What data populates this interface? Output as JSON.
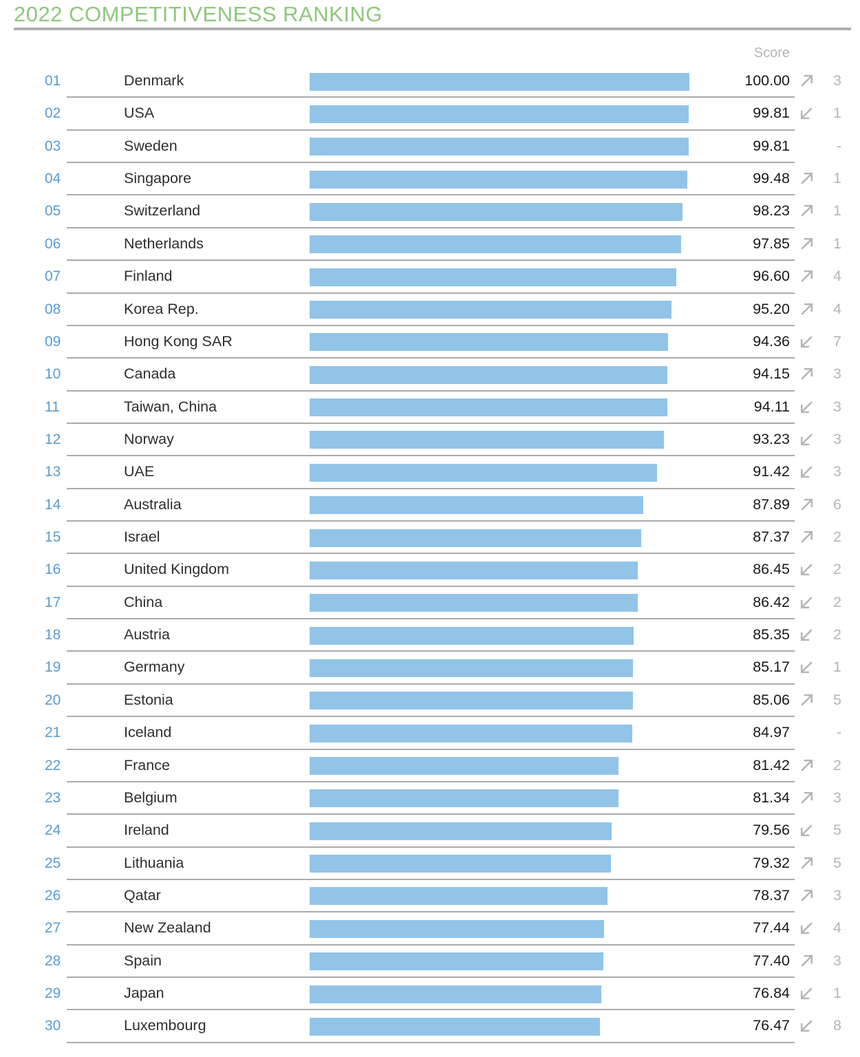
{
  "title": "2022 COMPETITIVENESS RANKING",
  "score_header": "Score",
  "colors": {
    "title_green": "#8DC87B",
    "rank_blue": "#5B9BCE",
    "bar_blue": "#92C4E8",
    "separator_gray": "#ABABAB",
    "muted_gray": "#B5B5B5",
    "score_text": "#1A1A1A",
    "country_text": "#2E2E2E"
  },
  "chart_data": {
    "type": "bar",
    "orientation": "horizontal",
    "title": "2022 COMPETITIVENESS RANKING",
    "value_label": "Score",
    "xlim": [
      0,
      100
    ],
    "grid": false,
    "legend": false,
    "rows": [
      {
        "rank": "01",
        "country": "Denmark",
        "score": 100.0,
        "score_label": "100.00",
        "trend": "up",
        "change": "3"
      },
      {
        "rank": "02",
        "country": "USA",
        "score": 99.81,
        "score_label": "99.81",
        "trend": "down",
        "change": "1"
      },
      {
        "rank": "03",
        "country": "Sweden",
        "score": 99.81,
        "score_label": "99.81",
        "trend": "none",
        "change": "-"
      },
      {
        "rank": "04",
        "country": "Singapore",
        "score": 99.48,
        "score_label": "99.48",
        "trend": "up",
        "change": "1"
      },
      {
        "rank": "05",
        "country": "Switzerland",
        "score": 98.23,
        "score_label": "98.23",
        "trend": "up",
        "change": "1"
      },
      {
        "rank": "06",
        "country": "Netherlands",
        "score": 97.85,
        "score_label": "97.85",
        "trend": "up",
        "change": "1"
      },
      {
        "rank": "07",
        "country": "Finland",
        "score": 96.6,
        "score_label": "96.60",
        "trend": "up",
        "change": "4"
      },
      {
        "rank": "08",
        "country": "Korea Rep.",
        "score": 95.2,
        "score_label": "95.20",
        "trend": "up",
        "change": "4"
      },
      {
        "rank": "09",
        "country": "Hong Kong SAR",
        "score": 94.36,
        "score_label": "94.36",
        "trend": "down",
        "change": "7"
      },
      {
        "rank": "10",
        "country": "Canada",
        "score": 94.15,
        "score_label": "94.15",
        "trend": "up",
        "change": "3"
      },
      {
        "rank": "11",
        "country": "Taiwan, China",
        "score": 94.11,
        "score_label": "94.11",
        "trend": "down",
        "change": "3"
      },
      {
        "rank": "12",
        "country": "Norway",
        "score": 93.23,
        "score_label": "93.23",
        "trend": "down",
        "change": "3"
      },
      {
        "rank": "13",
        "country": "UAE",
        "score": 91.42,
        "score_label": "91.42",
        "trend": "down",
        "change": "3"
      },
      {
        "rank": "14",
        "country": "Australia",
        "score": 87.89,
        "score_label": "87.89",
        "trend": "up",
        "change": "6"
      },
      {
        "rank": "15",
        "country": "Israel",
        "score": 87.37,
        "score_label": "87.37",
        "trend": "up",
        "change": "2"
      },
      {
        "rank": "16",
        "country": "United Kingdom",
        "score": 86.45,
        "score_label": "86.45",
        "trend": "down",
        "change": "2"
      },
      {
        "rank": "17",
        "country": "China",
        "score": 86.42,
        "score_label": "86.42",
        "trend": "down",
        "change": "2"
      },
      {
        "rank": "18",
        "country": "Austria",
        "score": 85.35,
        "score_label": "85.35",
        "trend": "down",
        "change": "2"
      },
      {
        "rank": "19",
        "country": "Germany",
        "score": 85.17,
        "score_label": "85.17",
        "trend": "down",
        "change": "1"
      },
      {
        "rank": "20",
        "country": "Estonia",
        "score": 85.06,
        "score_label": "85.06",
        "trend": "up",
        "change": "5"
      },
      {
        "rank": "21",
        "country": "Iceland",
        "score": 84.97,
        "score_label": "84.97",
        "trend": "none",
        "change": "-"
      },
      {
        "rank": "22",
        "country": "France",
        "score": 81.42,
        "score_label": "81.42",
        "trend": "up",
        "change": "2"
      },
      {
        "rank": "23",
        "country": "Belgium",
        "score": 81.34,
        "score_label": "81.34",
        "trend": "up",
        "change": "3"
      },
      {
        "rank": "24",
        "country": "Ireland",
        "score": 79.56,
        "score_label": "79.56",
        "trend": "down",
        "change": "5"
      },
      {
        "rank": "25",
        "country": "Lithuania",
        "score": 79.32,
        "score_label": "79.32",
        "trend": "up",
        "change": "5"
      },
      {
        "rank": "26",
        "country": "Qatar",
        "score": 78.37,
        "score_label": "78.37",
        "trend": "up",
        "change": "3"
      },
      {
        "rank": "27",
        "country": "New Zealand",
        "score": 77.44,
        "score_label": "77.44",
        "trend": "down",
        "change": "4"
      },
      {
        "rank": "28",
        "country": "Spain",
        "score": 77.4,
        "score_label": "77.40",
        "trend": "up",
        "change": "3"
      },
      {
        "rank": "29",
        "country": "Japan",
        "score": 76.84,
        "score_label": "76.84",
        "trend": "down",
        "change": "1"
      },
      {
        "rank": "30",
        "country": "Luxembourg",
        "score": 76.47,
        "score_label": "76.47",
        "trend": "down",
        "change": "8"
      }
    ]
  }
}
